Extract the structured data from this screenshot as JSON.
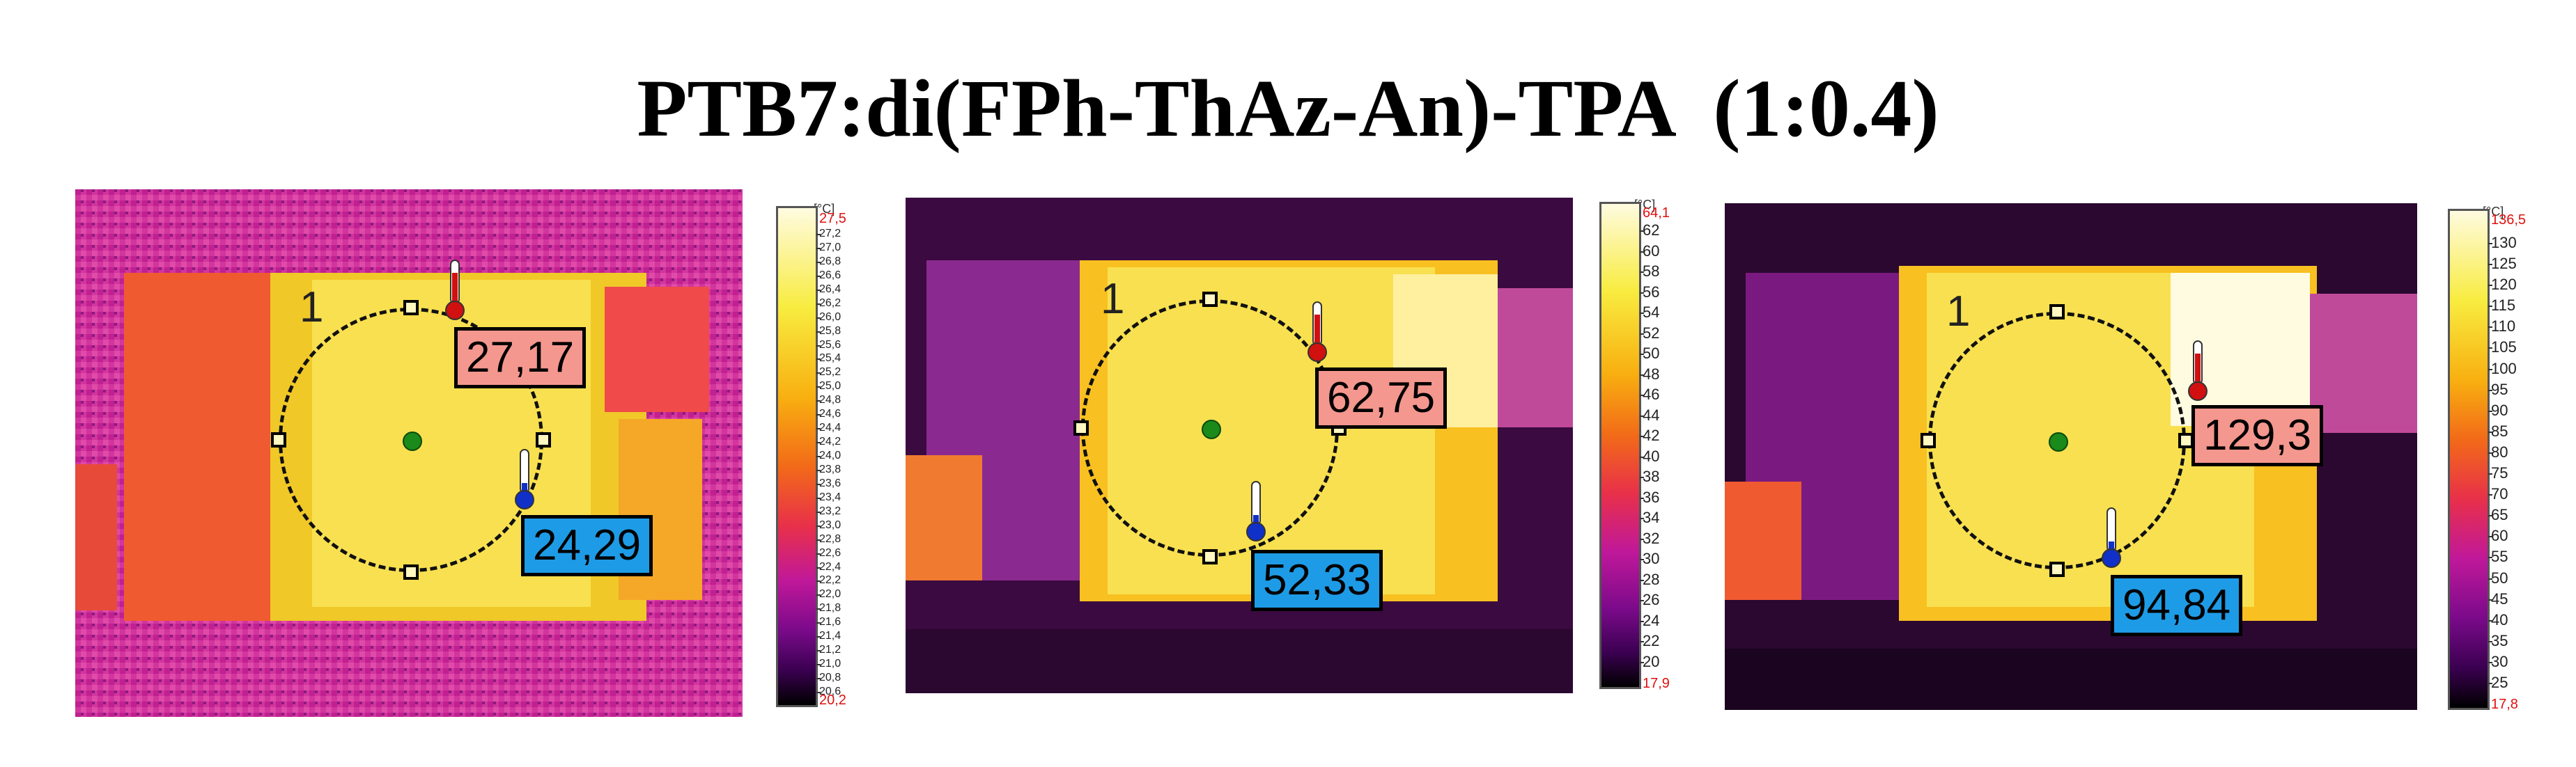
{
  "title": "PTB7:di(FPh-ThAz-An)-TPA  (1:0.4)",
  "colors": {
    "hot_label": "#f4978e",
    "cold_label": "#1e9be6",
    "palette": [
      "#000000",
      "#3a0050",
      "#7a0a8a",
      "#c0189a",
      "#e8304a",
      "#f26a18",
      "#f8b010",
      "#f8ec40",
      "#fffbe0"
    ]
  },
  "panels": [
    {
      "roi_number": "1",
      "max_label": "27,17",
      "min_label": "24,29",
      "scale": {
        "unit": "[°C]",
        "top": "27,5",
        "bottom": "20,2",
        "ticks": [
          "27,2",
          "27,0",
          "26,8",
          "26,6",
          "26,4",
          "26,2",
          "26,0",
          "25,8",
          "25,6",
          "25,4",
          "25,2",
          "25,0",
          "24,8",
          "24,6",
          "24,4",
          "24,2",
          "24,0",
          "23,8",
          "23,6",
          "23,4",
          "23,2",
          "23,0",
          "22,8",
          "22,6",
          "22,4",
          "22,2",
          "22,0",
          "21,8",
          "21,6",
          "21,4",
          "21,2",
          "21,0",
          "20,8",
          "20,6"
        ]
      }
    },
    {
      "roi_number": "1",
      "max_label": "62,75",
      "min_label": "52,33",
      "scale": {
        "unit": "[°C]",
        "top": "64,1",
        "bottom": "17,9",
        "ticks": [
          "62",
          "60",
          "58",
          "56",
          "54",
          "52",
          "50",
          "48",
          "46",
          "44",
          "42",
          "40",
          "38",
          "36",
          "34",
          "32",
          "30",
          "28",
          "26",
          "24",
          "22",
          "20"
        ]
      }
    },
    {
      "roi_number": "1",
      "max_label": "129,3",
      "min_label": "94,84",
      "scale": {
        "unit": "[°C]",
        "top": "136,5",
        "bottom": "17,8",
        "ticks": [
          "130",
          "125",
          "120",
          "115",
          "110",
          "105",
          "100",
          "95",
          "90",
          "85",
          "80",
          "75",
          "70",
          "65",
          "60",
          "55",
          "50",
          "45",
          "40",
          "35",
          "30",
          "25"
        ]
      }
    }
  ]
}
